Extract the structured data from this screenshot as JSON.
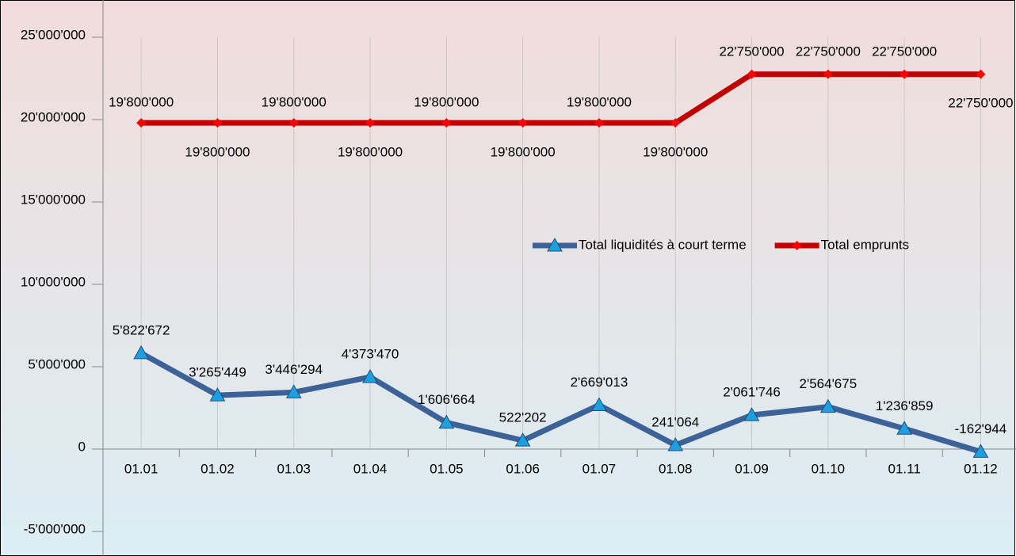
{
  "chart_data": {
    "type": "line",
    "categories": [
      "01.01",
      "01.02",
      "01.03",
      "01.04",
      "01.05",
      "01.06",
      "01.07",
      "01.08",
      "01.09",
      "01.10",
      "01.11",
      "01.12"
    ],
    "series": [
      {
        "name": "Total liquidités à court terme",
        "color": "#3c6298",
        "marker_color": "#1e9fe0",
        "marker": "triangle",
        "values": [
          5822672,
          3265449,
          3446294,
          4373470,
          1606664,
          522202,
          2669013,
          241064,
          2061746,
          2564675,
          1236859,
          -162944
        ],
        "value_labels": [
          "5'822'672",
          "3'265'449",
          "3'446'294",
          "4'373'470",
          "1'606'664",
          "522'202",
          "2'669'013",
          "241'064",
          "2'061'746",
          "2'564'675",
          "1'236'859",
          "-162'944"
        ]
      },
      {
        "name": "Total emprunts",
        "color": "#c00000",
        "marker_color": "#ff0000",
        "marker": "diamond",
        "values": [
          19800000,
          19800000,
          19800000,
          19800000,
          19800000,
          19800000,
          19800000,
          19800000,
          22750000,
          22750000,
          22750000,
          22750000
        ],
        "value_labels": [
          "19'800'000",
          "19'800'000",
          "19'800'000",
          "19'800'000",
          "19'800'000",
          "19'800'000",
          "19'800'000",
          "19'800'000",
          "22'750'000",
          "22'750'000",
          "22'750'000",
          "22'750'000"
        ]
      }
    ],
    "ylim": [
      -5000000,
      25000000
    ],
    "yticks": [
      {
        "value": -5000000,
        "label": "-5'000'000"
      },
      {
        "value": 0,
        "label": "0"
      },
      {
        "value": 5000000,
        "label": "5'000'000"
      },
      {
        "value": 10000000,
        "label": "10'000'000"
      },
      {
        "value": 15000000,
        "label": "15'000'000"
      },
      {
        "value": 20000000,
        "label": "20'000'000"
      },
      {
        "value": 25000000,
        "label": "25'000'000"
      }
    ],
    "grid": true,
    "legend": "right"
  }
}
